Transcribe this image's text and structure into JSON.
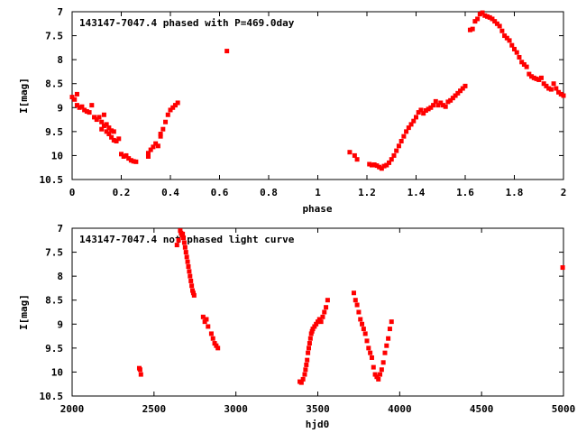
{
  "chart_data": [
    {
      "type": "scatter",
      "title": "143147-7047.4 phased with P=469.0day",
      "xlabel": "phase",
      "ylabel": "I[mag]",
      "xlim": [
        0,
        2
      ],
      "ylim": [
        7,
        10.5
      ],
      "y_inverted": true,
      "grid": false,
      "marker_color": "#ff0000",
      "x_ticks": [
        "0",
        "0.2",
        "0.4",
        "0.6",
        "0.8",
        "1",
        "1.2",
        "1.4",
        "1.6",
        "1.8",
        "2"
      ],
      "y_ticks": [
        "7",
        "7.5",
        "8",
        "8.5",
        "9",
        "9.5",
        "10",
        "10.5"
      ],
      "points": [
        [
          0.0,
          8.78
        ],
        [
          0.01,
          8.83
        ],
        [
          0.02,
          8.72
        ],
        [
          0.02,
          8.95
        ],
        [
          0.03,
          9.0
        ],
        [
          0.04,
          8.98
        ],
        [
          0.05,
          9.05
        ],
        [
          0.06,
          9.08
        ],
        [
          0.07,
          9.1
        ],
        [
          0.08,
          8.95
        ],
        [
          0.09,
          9.2
        ],
        [
          0.1,
          9.25
        ],
        [
          0.11,
          9.2
        ],
        [
          0.12,
          9.3
        ],
        [
          0.12,
          9.45
        ],
        [
          0.13,
          9.38
        ],
        [
          0.13,
          9.15
        ],
        [
          0.14,
          9.5
        ],
        [
          0.14,
          9.35
        ],
        [
          0.15,
          9.55
        ],
        [
          0.15,
          9.42
        ],
        [
          0.16,
          9.62
        ],
        [
          0.16,
          9.48
        ],
        [
          0.17,
          9.68
        ],
        [
          0.17,
          9.5
        ],
        [
          0.18,
          9.7
        ],
        [
          0.19,
          9.65
        ],
        [
          0.2,
          9.97
        ],
        [
          0.21,
          10.02
        ],
        [
          0.22,
          10.0
        ],
        [
          0.23,
          10.06
        ],
        [
          0.24,
          10.1
        ],
        [
          0.25,
          10.12
        ],
        [
          0.26,
          10.13
        ],
        [
          0.31,
          10.02
        ],
        [
          0.31,
          9.95
        ],
        [
          0.32,
          9.88
        ],
        [
          0.33,
          9.82
        ],
        [
          0.34,
          9.75
        ],
        [
          0.35,
          9.8
        ],
        [
          0.36,
          9.6
        ],
        [
          0.36,
          9.55
        ],
        [
          0.37,
          9.45
        ],
        [
          0.38,
          9.3
        ],
        [
          0.39,
          9.15
        ],
        [
          0.4,
          9.05
        ],
        [
          0.41,
          9.0
        ],
        [
          0.42,
          8.95
        ],
        [
          0.43,
          8.9
        ],
        [
          0.63,
          7.82
        ],
        [
          1.13,
          9.93
        ],
        [
          1.15,
          10.0
        ],
        [
          1.16,
          10.08
        ],
        [
          1.21,
          10.18
        ],
        [
          1.22,
          10.2
        ],
        [
          1.23,
          10.19
        ],
        [
          1.24,
          10.21
        ],
        [
          1.25,
          10.24
        ],
        [
          1.26,
          10.27
        ],
        [
          1.27,
          10.22
        ],
        [
          1.28,
          10.2
        ],
        [
          1.29,
          10.15
        ],
        [
          1.3,
          10.08
        ],
        [
          1.31,
          10.0
        ],
        [
          1.32,
          9.9
        ],
        [
          1.33,
          9.8
        ],
        [
          1.34,
          9.7
        ],
        [
          1.35,
          9.6
        ],
        [
          1.36,
          9.5
        ],
        [
          1.37,
          9.42
        ],
        [
          1.38,
          9.35
        ],
        [
          1.39,
          9.28
        ],
        [
          1.4,
          9.2
        ],
        [
          1.41,
          9.1
        ],
        [
          1.42,
          9.05
        ],
        [
          1.43,
          9.12
        ],
        [
          1.44,
          9.06
        ],
        [
          1.45,
          9.03
        ],
        [
          1.46,
          9.0
        ],
        [
          1.47,
          8.95
        ],
        [
          1.48,
          8.87
        ],
        [
          1.49,
          8.95
        ],
        [
          1.5,
          8.9
        ],
        [
          1.51,
          8.95
        ],
        [
          1.52,
          8.98
        ],
        [
          1.53,
          8.88
        ],
        [
          1.54,
          8.85
        ],
        [
          1.55,
          8.8
        ],
        [
          1.56,
          8.75
        ],
        [
          1.57,
          8.7
        ],
        [
          1.58,
          8.65
        ],
        [
          1.59,
          8.6
        ],
        [
          1.6,
          8.55
        ],
        [
          1.62,
          7.38
        ],
        [
          1.63,
          7.36
        ],
        [
          1.64,
          7.2
        ],
        [
          1.65,
          7.15
        ],
        [
          1.66,
          7.05
        ],
        [
          1.67,
          7.02
        ],
        [
          1.68,
          7.08
        ],
        [
          1.69,
          7.1
        ],
        [
          1.7,
          7.12
        ],
        [
          1.71,
          7.15
        ],
        [
          1.72,
          7.2
        ],
        [
          1.73,
          7.25
        ],
        [
          1.74,
          7.3
        ],
        [
          1.75,
          7.4
        ],
        [
          1.76,
          7.5
        ],
        [
          1.77,
          7.55
        ],
        [
          1.78,
          7.6
        ],
        [
          1.79,
          7.7
        ],
        [
          1.8,
          7.78
        ],
        [
          1.81,
          7.85
        ],
        [
          1.82,
          7.95
        ],
        [
          1.83,
          8.05
        ],
        [
          1.84,
          8.1
        ],
        [
          1.85,
          8.15
        ],
        [
          1.86,
          8.3
        ],
        [
          1.87,
          8.35
        ],
        [
          1.88,
          8.38
        ],
        [
          1.89,
          8.4
        ],
        [
          1.9,
          8.42
        ],
        [
          1.91,
          8.38
        ],
        [
          1.92,
          8.5
        ],
        [
          1.93,
          8.55
        ],
        [
          1.94,
          8.6
        ],
        [
          1.95,
          8.62
        ],
        [
          1.96,
          8.5
        ],
        [
          1.97,
          8.6
        ],
        [
          1.98,
          8.68
        ],
        [
          1.99,
          8.72
        ],
        [
          2.0,
          8.75
        ]
      ]
    },
    {
      "type": "scatter",
      "title": "143147-7047.4 not phased light curve",
      "xlabel": "hjd0",
      "ylabel": "I[mag]",
      "xlim": [
        2000,
        5000
      ],
      "ylim": [
        7,
        10.5
      ],
      "y_inverted": true,
      "grid": false,
      "marker_color": "#ff0000",
      "x_ticks": [
        "2000",
        "2500",
        "3000",
        "3500",
        "4000",
        "4500",
        "5000"
      ],
      "y_ticks": [
        "7",
        "7.5",
        "8",
        "8.5",
        "9",
        "9.5",
        "10",
        "10.5"
      ],
      "points": [
        [
          2410,
          9.92
        ],
        [
          2415,
          9.95
        ],
        [
          2420,
          10.05
        ],
        [
          2640,
          7.35
        ],
        [
          2650,
          7.25
        ],
        [
          2660,
          7.05
        ],
        [
          2665,
          7.1
        ],
        [
          2670,
          7.15
        ],
        [
          2675,
          7.12
        ],
        [
          2680,
          7.2
        ],
        [
          2685,
          7.3
        ],
        [
          2690,
          7.4
        ],
        [
          2695,
          7.5
        ],
        [
          2700,
          7.6
        ],
        [
          2705,
          7.7
        ],
        [
          2710,
          7.8
        ],
        [
          2715,
          7.9
        ],
        [
          2720,
          8.0
        ],
        [
          2725,
          8.1
        ],
        [
          2730,
          8.2
        ],
        [
          2735,
          8.3
        ],
        [
          2740,
          8.35
        ],
        [
          2745,
          8.4
        ],
        [
          2800,
          8.85
        ],
        [
          2810,
          8.95
        ],
        [
          2820,
          8.9
        ],
        [
          2830,
          9.05
        ],
        [
          2850,
          9.2
        ],
        [
          2860,
          9.3
        ],
        [
          2870,
          9.4
        ],
        [
          2880,
          9.45
        ],
        [
          2890,
          9.5
        ],
        [
          3390,
          10.2
        ],
        [
          3400,
          10.22
        ],
        [
          3410,
          10.15
        ],
        [
          3420,
          10.05
        ],
        [
          3425,
          9.95
        ],
        [
          3430,
          9.85
        ],
        [
          3435,
          9.75
        ],
        [
          3440,
          9.6
        ],
        [
          3445,
          9.5
        ],
        [
          3450,
          9.4
        ],
        [
          3455,
          9.3
        ],
        [
          3460,
          9.2
        ],
        [
          3465,
          9.15
        ],
        [
          3470,
          9.1
        ],
        [
          3480,
          9.05
        ],
        [
          3490,
          9.0
        ],
        [
          3500,
          8.95
        ],
        [
          3510,
          8.9
        ],
        [
          3520,
          8.95
        ],
        [
          3530,
          8.85
        ],
        [
          3540,
          8.75
        ],
        [
          3550,
          8.65
        ],
        [
          3560,
          8.5
        ],
        [
          3720,
          8.35
        ],
        [
          3730,
          8.5
        ],
        [
          3740,
          8.6
        ],
        [
          3750,
          8.75
        ],
        [
          3760,
          8.9
        ],
        [
          3770,
          9.0
        ],
        [
          3780,
          9.1
        ],
        [
          3790,
          9.2
        ],
        [
          3800,
          9.35
        ],
        [
          3810,
          9.5
        ],
        [
          3820,
          9.6
        ],
        [
          3830,
          9.7
        ],
        [
          3840,
          9.9
        ],
        [
          3850,
          10.05
        ],
        [
          3860,
          10.1
        ],
        [
          3870,
          10.15
        ],
        [
          3880,
          10.05
        ],
        [
          3890,
          9.95
        ],
        [
          3900,
          9.8
        ],
        [
          3910,
          9.6
        ],
        [
          3920,
          9.45
        ],
        [
          3930,
          9.3
        ],
        [
          3940,
          9.1
        ],
        [
          3950,
          8.95
        ],
        [
          4995,
          7.82
        ]
      ]
    }
  ]
}
